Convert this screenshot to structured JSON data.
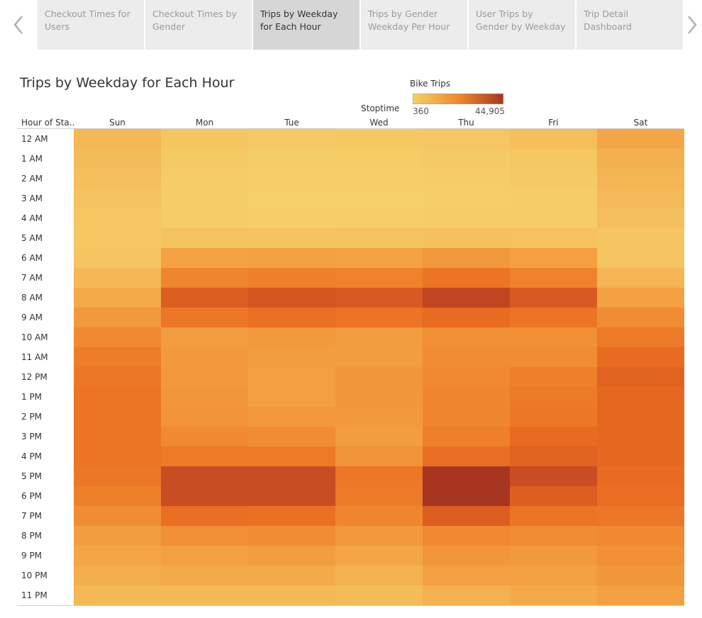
{
  "nav": {
    "prev_icon": "chevron-left-icon",
    "next_icon": "chevron-right-icon"
  },
  "tabs": [
    {
      "label": "Checkout Times for Users",
      "active": false
    },
    {
      "label": "Checkout Times by Gender",
      "active": false
    },
    {
      "label": "Trips by Weekday for Each Hour",
      "active": true
    },
    {
      "label": "Trips by Gender Weekday Per Hour",
      "active": false
    },
    {
      "label": "User Trips by Gender by Weekday",
      "active": false
    },
    {
      "label": "Trip Detail Dashboard",
      "active": false
    }
  ],
  "chart_data": {
    "type": "heatmap",
    "title": "Trips by Weekday for Each Hour",
    "column_header": "Stoptime",
    "row_header": "Hour of Sta..",
    "columns": [
      "Sun",
      "Mon",
      "Tue",
      "Wed",
      "Thu",
      "Fri",
      "Sat"
    ],
    "rows": [
      "12 AM",
      "1 AM",
      "2 AM",
      "3 AM",
      "4 AM",
      "5 AM",
      "6 AM",
      "7 AM",
      "8 AM",
      "9 AM",
      "10 AM",
      "11 AM",
      "12 PM",
      "1 PM",
      "2 PM",
      "3 PM",
      "4 PM",
      "5 PM",
      "6 PM",
      "7 PM",
      "8 PM",
      "9 PM",
      "10 PM",
      "11 PM"
    ],
    "legend": {
      "title": "Bike Trips",
      "min": 360,
      "max": 44905,
      "min_label": "360",
      "max_label": "44,905",
      "color_low": "#f5d069",
      "color_high": "#a63620"
    },
    "values": [
      [
        7000,
        3500,
        2200,
        2600,
        3200,
        5000,
        12000
      ],
      [
        6000,
        2000,
        1200,
        1400,
        2200,
        3000,
        9500
      ],
      [
        5000,
        1400,
        800,
        900,
        1400,
        2000,
        8000
      ],
      [
        3800,
        1100,
        600,
        700,
        1000,
        1400,
        6500
      ],
      [
        2800,
        1300,
        900,
        1000,
        1200,
        1500,
        5000
      ],
      [
        2600,
        4000,
        3800,
        4000,
        4500,
        4200,
        3500
      ],
      [
        3500,
        13000,
        14000,
        13000,
        16000,
        14000,
        3500
      ],
      [
        7000,
        22000,
        24000,
        23000,
        28000,
        23000,
        8000
      ],
      [
        11000,
        34000,
        36000,
        35000,
        40000,
        35000,
        14000
      ],
      [
        16000,
        27000,
        29000,
        28000,
        31000,
        28000,
        20000
      ],
      [
        21000,
        15000,
        16000,
        15000,
        19000,
        19000,
        26000
      ],
      [
        25000,
        16000,
        15000,
        15000,
        20000,
        20000,
        31000
      ],
      [
        27000,
        16000,
        14000,
        17000,
        21000,
        24000,
        33000
      ],
      [
        28000,
        17000,
        14000,
        17000,
        22000,
        26000,
        32000
      ],
      [
        28000,
        18000,
        16000,
        16000,
        22000,
        27000,
        32000
      ],
      [
        28000,
        21000,
        20000,
        15000,
        24000,
        31000,
        32000
      ],
      [
        28000,
        26000,
        26000,
        18000,
        30000,
        33000,
        32000
      ],
      [
        27000,
        38000,
        38000,
        27000,
        45000,
        38000,
        31000
      ],
      [
        24000,
        38000,
        38000,
        26000,
        45000,
        34000,
        30000
      ],
      [
        20000,
        30000,
        29000,
        22000,
        34000,
        28000,
        27000
      ],
      [
        15000,
        19000,
        20000,
        16000,
        21000,
        20000,
        21000
      ],
      [
        12000,
        14000,
        15000,
        12000,
        17000,
        16000,
        19000
      ],
      [
        10000,
        11000,
        11000,
        9000,
        14000,
        14000,
        17000
      ],
      [
        7000,
        7000,
        7000,
        6000,
        9000,
        11000,
        14000
      ]
    ]
  }
}
